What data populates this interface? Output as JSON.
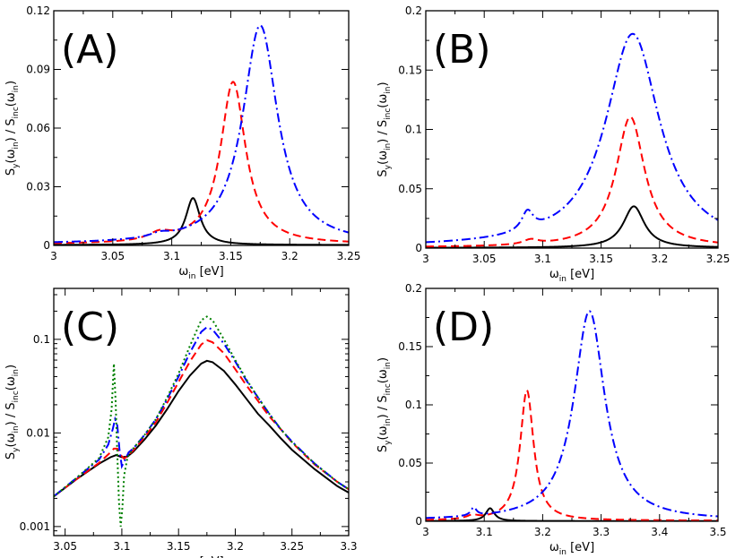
{
  "chart_data": [
    {
      "panel": "A",
      "type": "line",
      "label": "(A)",
      "xlabel": {
        "main": "ω",
        "sub": "in",
        "rest": " [eV]"
      },
      "ylabel": {
        "parts": [
          [
            "S",
            ""
          ],
          [
            "y",
            "sub"
          ],
          [
            "(ω",
            ""
          ],
          [
            "in",
            "sub"
          ],
          [
            ") / S",
            ""
          ],
          [
            "inc",
            "sub"
          ],
          [
            "(ω",
            ""
          ],
          [
            "in",
            "sub"
          ],
          [
            ")",
            ""
          ]
        ]
      },
      "xlim": [
        3.0,
        3.25
      ],
      "ylim": [
        0,
        0.12
      ],
      "yscale": "linear",
      "xticks": [
        3.0,
        3.05,
        3.1,
        3.15,
        3.2,
        3.25
      ],
      "xtick_labels": [
        "3",
        "3.05",
        "3.1",
        "3.15",
        "3.2",
        "3.25"
      ],
      "yticks": [
        0,
        0.03,
        0.06,
        0.09,
        0.12
      ],
      "ytick_labels": [
        "0",
        "0.03",
        "0.06",
        "0.09",
        "0.12"
      ],
      "series": [
        {
          "name": "black-solid",
          "color": "#000000",
          "dash": "solid",
          "baseline": 0.0002,
          "peaks": [
            {
              "x0": 3.118,
              "amp": 0.024,
              "gamma": 0.0075
            }
          ]
        },
        {
          "name": "red-dashed",
          "color": "#ff0000",
          "dash": "dashed",
          "baseline": 0.0005,
          "peaks": [
            {
              "x0": 3.152,
              "amp": 0.083,
              "gamma": 0.013
            },
            {
              "x0": 3.09,
              "amp": 0.004,
              "gamma": 0.012
            }
          ]
        },
        {
          "name": "blue-dashdot",
          "color": "#0000ff",
          "dash": "dashdot",
          "baseline": 0.0005,
          "peaks": [
            {
              "x0": 3.175,
              "amp": 0.112,
              "gamma": 0.018
            },
            {
              "x0": 3.09,
              "amp": 0.002,
              "gamma": 0.01
            }
          ]
        }
      ]
    },
    {
      "panel": "B",
      "type": "line",
      "label": "(B)",
      "xlabel": {
        "main": "ω",
        "sub": "in",
        "rest": " [eV]"
      },
      "ylabel": {
        "parts": [
          [
            "S",
            ""
          ],
          [
            "y",
            "sub"
          ],
          [
            "(ω",
            ""
          ],
          [
            "in",
            "sub"
          ],
          [
            ") / S",
            ""
          ],
          [
            "inc",
            "sub"
          ],
          [
            "(ω",
            ""
          ],
          [
            "in",
            "sub"
          ],
          [
            ")",
            ""
          ]
        ]
      },
      "xlim": [
        3.0,
        3.25
      ],
      "ylim": [
        0,
        0.2
      ],
      "yscale": "linear",
      "xticks": [
        3.0,
        3.05,
        3.1,
        3.15,
        3.2,
        3.25
      ],
      "xtick_labels": [
        "3",
        "3.05",
        "3.1",
        "3.15",
        "3.2",
        "3.25"
      ],
      "yticks": [
        0,
        0.05,
        0.1,
        0.15,
        0.2
      ],
      "ytick_labels": [
        "0",
        "0.05",
        "0.1",
        "0.15",
        "0.2"
      ],
      "series": [
        {
          "name": "black-solid",
          "color": "#000000",
          "dash": "solid",
          "baseline": 0.0002,
          "peaks": [
            {
              "x0": 3.178,
              "amp": 0.035,
              "gamma": 0.011
            }
          ]
        },
        {
          "name": "red-dashed",
          "color": "#ff0000",
          "dash": "dashed",
          "baseline": 0.0005,
          "peaks": [
            {
              "x0": 3.175,
              "amp": 0.11,
              "gamma": 0.015
            },
            {
              "x0": 3.09,
              "amp": 0.004,
              "gamma": 0.008
            }
          ]
        },
        {
          "name": "blue-dashdot",
          "color": "#0000ff",
          "dash": "dashdot",
          "baseline": 0.0005,
          "peaks": [
            {
              "x0": 3.177,
              "amp": 0.18,
              "gamma": 0.028
            },
            {
              "x0": 3.087,
              "amp": 0.016,
              "gamma": 0.006
            }
          ]
        }
      ]
    },
    {
      "panel": "C",
      "type": "line",
      "label": "(C)",
      "xlabel": {
        "main": "ω",
        "sub": "in",
        "rest": " [eV]"
      },
      "ylabel": {
        "parts": [
          [
            "S",
            ""
          ],
          [
            "y",
            "sub"
          ],
          [
            "(ω",
            ""
          ],
          [
            "in",
            "sub"
          ],
          [
            ") / S",
            ""
          ],
          [
            "inc",
            "sub"
          ],
          [
            "(ω",
            ""
          ],
          [
            "in",
            "sub"
          ],
          [
            ")",
            ""
          ]
        ]
      },
      "xlim": [
        3.04,
        3.3
      ],
      "ylim": [
        0.0008,
        0.35
      ],
      "yscale": "log",
      "xticks": [
        3.05,
        3.1,
        3.15,
        3.2,
        3.25,
        3.3
      ],
      "xtick_labels": [
        "3.05",
        "3.1",
        "3.15",
        "3.2",
        "3.25",
        "3.3"
      ],
      "yticks": [
        0.001,
        0.01,
        0.1
      ],
      "ytick_labels": [
        "0.001",
        "0.01",
        "0.1"
      ],
      "series": [
        {
          "name": "black-solid",
          "color": "#000000",
          "dash": "solid",
          "points": [
            [
              3.04,
              0.0021
            ],
            [
              3.06,
              0.0032
            ],
            [
              3.08,
              0.0047
            ],
            [
              3.09,
              0.0055
            ],
            [
              3.095,
              0.0058
            ],
            [
              3.1,
              0.0055
            ],
            [
              3.105,
              0.0056
            ],
            [
              3.11,
              0.0063
            ],
            [
              3.12,
              0.0085
            ],
            [
              3.13,
              0.012
            ],
            [
              3.14,
              0.018
            ],
            [
              3.15,
              0.028
            ],
            [
              3.16,
              0.041
            ],
            [
              3.17,
              0.055
            ],
            [
              3.175,
              0.059
            ],
            [
              3.18,
              0.057
            ],
            [
              3.19,
              0.046
            ],
            [
              3.2,
              0.033
            ],
            [
              3.21,
              0.023
            ],
            [
              3.22,
              0.016
            ],
            [
              3.23,
              0.012
            ],
            [
              3.24,
              0.0088
            ],
            [
              3.25,
              0.0066
            ],
            [
              3.27,
              0.0041
            ],
            [
              3.29,
              0.0027
            ],
            [
              3.3,
              0.0023
            ]
          ]
        },
        {
          "name": "red-dashed",
          "color": "#ff0000",
          "dash": "dashed",
          "points": [
            [
              3.04,
              0.0021
            ],
            [
              3.06,
              0.0032
            ],
            [
              3.08,
              0.0048
            ],
            [
              3.09,
              0.0062
            ],
            [
              3.093,
              0.0068
            ],
            [
              3.096,
              0.0068
            ],
            [
              3.099,
              0.0058
            ],
            [
              3.102,
              0.0053
            ],
            [
              3.106,
              0.0058
            ],
            [
              3.11,
              0.0065
            ],
            [
              3.12,
              0.009
            ],
            [
              3.13,
              0.013
            ],
            [
              3.14,
              0.021
            ],
            [
              3.15,
              0.035
            ],
            [
              3.16,
              0.058
            ],
            [
              3.17,
              0.088
            ],
            [
              3.175,
              0.098
            ],
            [
              3.18,
              0.093
            ],
            [
              3.19,
              0.071
            ],
            [
              3.2,
              0.048
            ],
            [
              3.21,
              0.032
            ],
            [
              3.22,
              0.022
            ],
            [
              3.23,
              0.015
            ],
            [
              3.24,
              0.011
            ],
            [
              3.25,
              0.0079
            ],
            [
              3.27,
              0.0046
            ],
            [
              3.29,
              0.003
            ],
            [
              3.3,
              0.0025
            ]
          ]
        },
        {
          "name": "blue-dashdot",
          "color": "#0000ff",
          "dash": "dashdot",
          "points": [
            [
              3.04,
              0.0021
            ],
            [
              3.06,
              0.0033
            ],
            [
              3.08,
              0.0052
            ],
            [
              3.088,
              0.0075
            ],
            [
              3.092,
              0.011
            ],
            [
              3.094,
              0.014
            ],
            [
              3.096,
              0.012
            ],
            [
              3.098,
              0.0065
            ],
            [
              3.1,
              0.0044
            ],
            [
              3.103,
              0.0052
            ],
            [
              3.106,
              0.0062
            ],
            [
              3.11,
              0.0068
            ],
            [
              3.12,
              0.0095
            ],
            [
              3.13,
              0.014
            ],
            [
              3.14,
              0.023
            ],
            [
              3.15,
              0.04
            ],
            [
              3.16,
              0.072
            ],
            [
              3.17,
              0.12
            ],
            [
              3.175,
              0.135
            ],
            [
              3.18,
              0.127
            ],
            [
              3.19,
              0.09
            ],
            [
              3.2,
              0.058
            ],
            [
              3.21,
              0.036
            ],
            [
              3.22,
              0.024
            ],
            [
              3.23,
              0.016
            ],
            [
              3.24,
              0.011
            ],
            [
              3.25,
              0.0081
            ],
            [
              3.27,
              0.0047
            ],
            [
              3.29,
              0.003
            ],
            [
              3.3,
              0.0025
            ]
          ]
        },
        {
          "name": "green-dotted",
          "color": "#008000",
          "dash": "dotted",
          "points": [
            [
              3.04,
              0.0021
            ],
            [
              3.06,
              0.0033
            ],
            [
              3.08,
              0.0054
            ],
            [
              3.088,
              0.009
            ],
            [
              3.091,
              0.018
            ],
            [
              3.093,
              0.055
            ],
            [
              3.0945,
              0.022
            ],
            [
              3.096,
              0.006
            ],
            [
              3.0975,
              0.0018
            ],
            [
              3.099,
              0.001
            ],
            [
              3.1005,
              0.0016
            ],
            [
              3.102,
              0.0035
            ],
            [
              3.105,
              0.0055
            ],
            [
              3.11,
              0.0068
            ],
            [
              3.12,
              0.0095
            ],
            [
              3.13,
              0.014
            ],
            [
              3.14,
              0.024
            ],
            [
              3.15,
              0.043
            ],
            [
              3.16,
              0.085
            ],
            [
              3.17,
              0.16
            ],
            [
              3.175,
              0.175
            ],
            [
              3.18,
              0.16
            ],
            [
              3.19,
              0.1
            ],
            [
              3.2,
              0.06
            ],
            [
              3.21,
              0.037
            ],
            [
              3.22,
              0.024
            ],
            [
              3.23,
              0.016
            ],
            [
              3.24,
              0.011
            ],
            [
              3.25,
              0.008
            ],
            [
              3.27,
              0.0047
            ],
            [
              3.29,
              0.003
            ],
            [
              3.3,
              0.0025
            ]
          ]
        }
      ]
    },
    {
      "panel": "D",
      "type": "line",
      "label": "(D)",
      "xlabel": {
        "main": "ω",
        "sub": "in",
        "rest": " [eV]"
      },
      "ylabel": {
        "parts": [
          [
            "S",
            ""
          ],
          [
            "y",
            "sub"
          ],
          [
            "(ω",
            ""
          ],
          [
            "in",
            "sub"
          ],
          [
            ") / S",
            ""
          ],
          [
            "inc",
            "sub"
          ],
          [
            "(ω",
            ""
          ],
          [
            "in",
            "sub"
          ],
          [
            ")",
            ""
          ]
        ]
      },
      "xlim": [
        3.0,
        3.5
      ],
      "ylim": [
        0,
        0.2
      ],
      "yscale": "linear",
      "xticks": [
        3.0,
        3.1,
        3.2,
        3.3,
        3.4,
        3.5
      ],
      "xtick_labels": [
        "3",
        "3.1",
        "3.2",
        "3.3",
        "3.4",
        "3.5"
      ],
      "yticks": [
        0,
        0.05,
        0.1,
        0.15,
        0.2
      ],
      "ytick_labels": [
        "0",
        "0.05",
        "0.1",
        "0.15",
        "0.2"
      ],
      "series": [
        {
          "name": "black-solid",
          "color": "#000000",
          "dash": "solid",
          "baseline": 0.0002,
          "peaks": [
            {
              "x0": 3.11,
              "amp": 0.011,
              "gamma": 0.009
            }
          ]
        },
        {
          "name": "red-dashed",
          "color": "#ff0000",
          "dash": "dashed",
          "baseline": 0.0005,
          "peaks": [
            {
              "x0": 3.173,
              "amp": 0.112,
              "gamma": 0.014
            },
            {
              "x0": 3.08,
              "amp": 0.003,
              "gamma": 0.012
            }
          ]
        },
        {
          "name": "blue-dashdot",
          "color": "#0000ff",
          "dash": "dashdot",
          "baseline": 0.0005,
          "peaks": [
            {
              "x0": 3.28,
              "amp": 0.18,
              "gamma": 0.032
            },
            {
              "x0": 3.082,
              "amp": 0.007,
              "gamma": 0.006
            }
          ]
        }
      ]
    }
  ]
}
